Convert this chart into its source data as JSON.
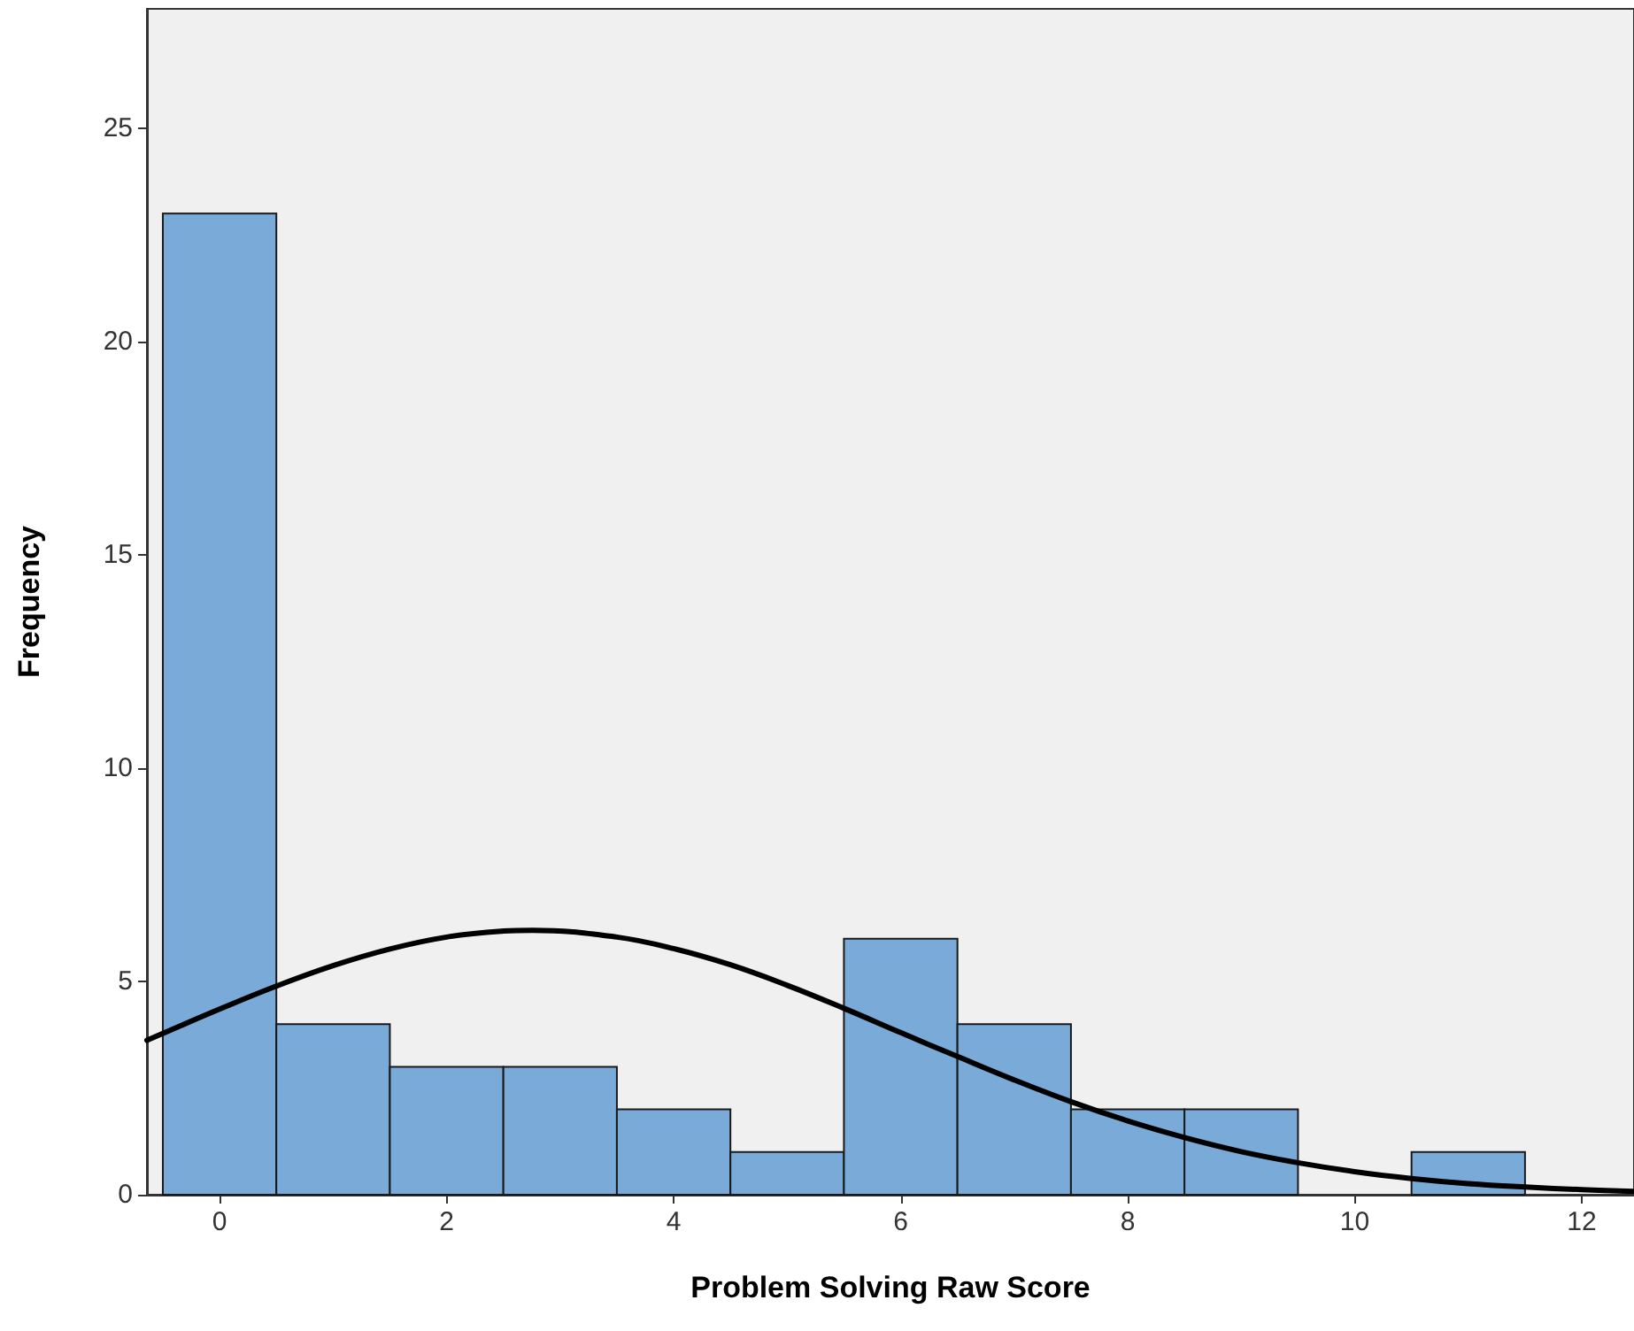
{
  "chart_data": {
    "type": "histogram",
    "xlabel": "Problem Solving Raw Score",
    "ylabel": "Frequency",
    "bins": [
      -0.5,
      0.5,
      1.5,
      2.5,
      3.5,
      4.5,
      5.5,
      6.5,
      7.5,
      8.5,
      9.5,
      10.5,
      11.5
    ],
    "values": [
      23,
      4,
      3,
      3,
      2,
      1,
      6,
      4,
      2,
      2,
      0,
      1
    ],
    "color": "#7aaad8",
    "series": [
      {
        "type": "line",
        "color": "#000000",
        "x": [
          -0.64,
          -0.5,
          0,
          0.5,
          1,
          1.5,
          2,
          2.5,
          2.76,
          3.5,
          4,
          4.5,
          5,
          5.5,
          6,
          6.5,
          7,
          7.5,
          8,
          8.5,
          9,
          9.5,
          10,
          10.5,
          11,
          11.5,
          12,
          12.46
        ],
        "values": [
          3.62,
          3.78,
          4.35,
          4.89,
          5.37,
          5.76,
          6.04,
          6.18,
          6.2,
          6.04,
          5.77,
          5.39,
          4.91,
          4.37,
          3.8,
          3.24,
          2.69,
          2.18,
          1.73,
          1.34,
          1.01,
          0.75,
          0.54,
          0.38,
          0.26,
          0.18,
          0.12,
          0.08
        ]
      }
    ],
    "xlim": [
      -0.64,
      12.46
    ],
    "xticks": [
      0,
      2,
      4,
      6,
      8,
      10,
      12
    ],
    "ylim": [
      0,
      27.8
    ],
    "yticks": [
      0,
      5,
      10,
      15,
      20,
      25
    ],
    "grid": false
  }
}
